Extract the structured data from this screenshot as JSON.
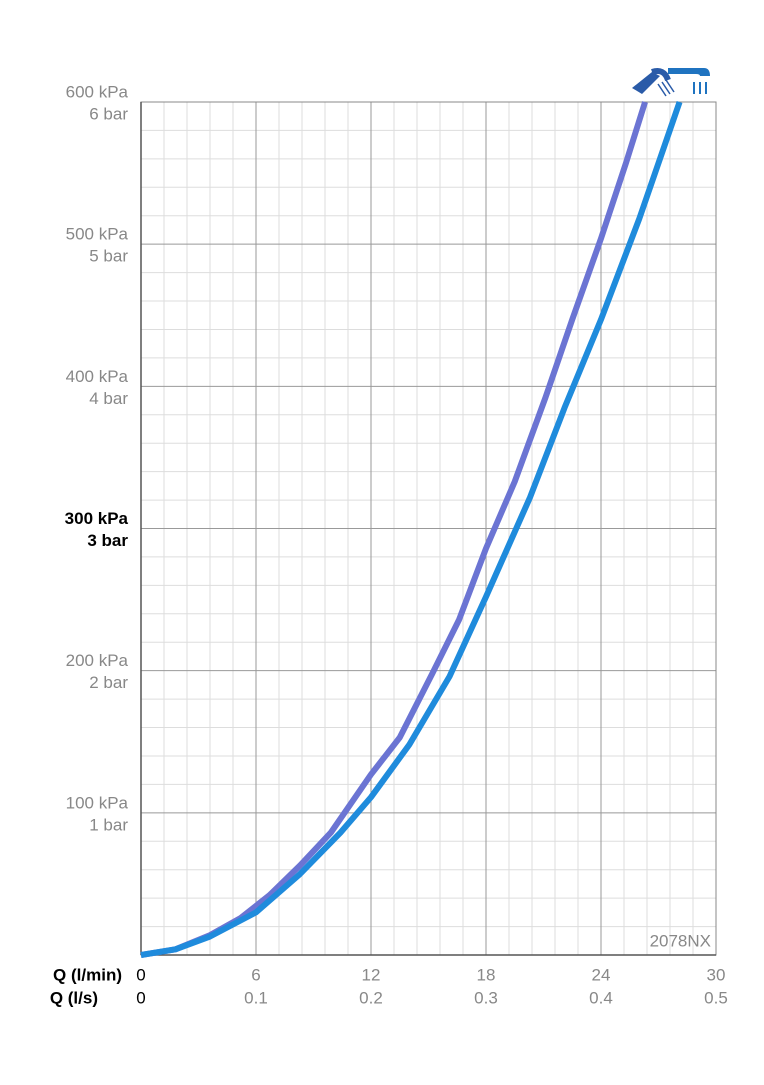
{
  "chart_data": {
    "type": "line",
    "xlabel": "Q (l/min)",
    "x2label": "Q (l/s)",
    "annotation": "2078NX",
    "xlim": [
      0,
      30
    ],
    "xticks": [
      0,
      6,
      12,
      18,
      24,
      30
    ],
    "x2lim": [
      0,
      0.5
    ],
    "x2ticks": [
      0,
      0.1,
      0.2,
      0.3,
      0.4,
      0.5
    ],
    "ylim": [
      0,
      600
    ],
    "yticks": [
      {
        "value": 100,
        "label": "100 kPa",
        "sublabel": "1 bar"
      },
      {
        "value": 200,
        "label": "200 kPa",
        "sublabel": "2 bar"
      },
      {
        "value": 300,
        "label": "300 kPa",
        "sublabel": "3 bar"
      },
      {
        "value": 400,
        "label": "400 kPa",
        "sublabel": "4 bar"
      },
      {
        "value": 500,
        "label": "500 kPa",
        "sublabel": "5 bar"
      },
      {
        "value": 600,
        "label": "600 kPa",
        "sublabel": "6 bar"
      }
    ],
    "bold_tick": 300,
    "grid": true,
    "minor_divisions": 5,
    "series": [
      {
        "color": "#6b74d3",
        "x": [
          0,
          1.8,
          3.6,
          5.2,
          6.7,
          8.3,
          9.9,
          12,
          13.5,
          15.2,
          16.6,
          18,
          19.5,
          21.1,
          22.5,
          24,
          25.3,
          26.3
        ],
        "values": [
          0,
          4,
          14,
          26,
          42,
          63,
          86,
          127,
          153,
          198,
          236,
          286,
          333,
          392,
          447,
          504,
          557,
          600
        ]
      },
      {
        "color": "#1f8bdc",
        "x": [
          0,
          1.8,
          3.6,
          6,
          8.3,
          10.4,
          12,
          14,
          16.1,
          18,
          20.3,
          22.1,
          24,
          26,
          28.1
        ],
        "values": [
          0,
          4,
          13,
          30,
          57,
          86,
          111,
          148,
          196,
          252,
          322,
          385,
          447,
          518,
          600
        ]
      }
    ]
  }
}
